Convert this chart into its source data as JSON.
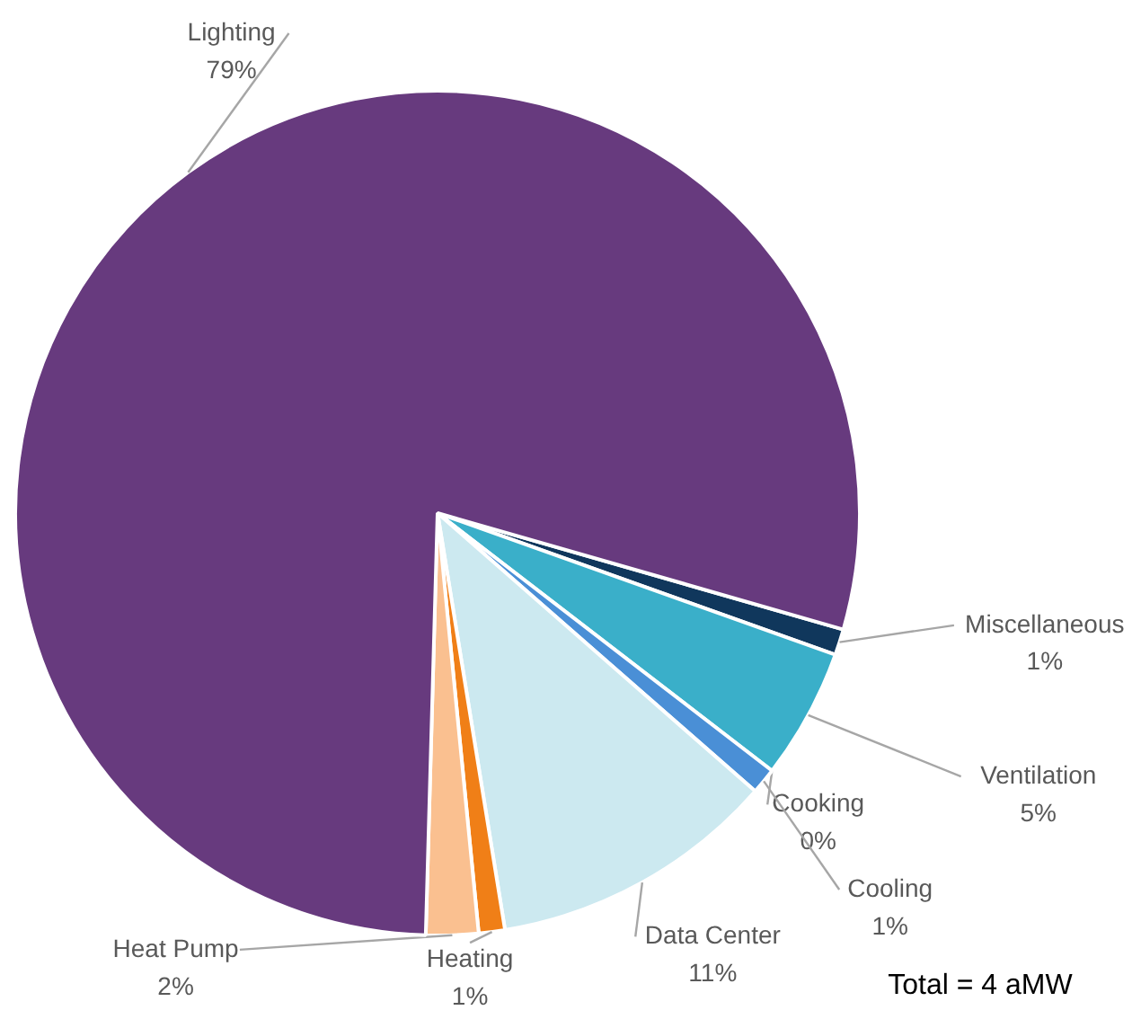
{
  "chart_data": {
    "type": "pie",
    "categories": [
      "Miscellaneous",
      "Ventilation",
      "Cooking",
      "Cooling",
      "Data Center",
      "Heating",
      "Heat Pump",
      "Lighting"
    ],
    "values": [
      1,
      5,
      0,
      1,
      11,
      1,
      2,
      79
    ],
    "value_labels": [
      "1%",
      "5%",
      "0%",
      "1%",
      "11%",
      "1%",
      "2%",
      "79%"
    ],
    "colors": [
      "#10375c",
      "#3aafc9",
      "#a5a5a5",
      "#4a8fd6",
      "#cce9f0",
      "#f07f17",
      "#fac090",
      "#673a7e"
    ],
    "annotations": [
      "Total = 4 aMW"
    ]
  }
}
